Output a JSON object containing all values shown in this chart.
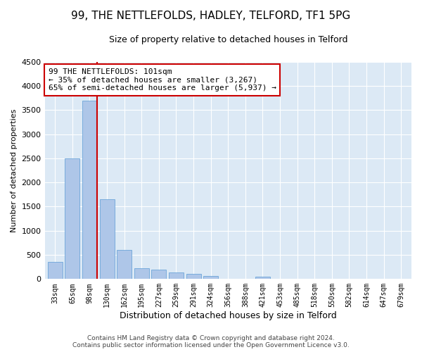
{
  "title": "99, THE NETTLEFOLDS, HADLEY, TELFORD, TF1 5PG",
  "subtitle": "Size of property relative to detached houses in Telford",
  "xlabel": "Distribution of detached houses by size in Telford",
  "ylabel": "Number of detached properties",
  "footer_line1": "Contains HM Land Registry data © Crown copyright and database right 2024.",
  "footer_line2": "Contains public sector information licensed under the Open Government Licence v3.0.",
  "categories": [
    "33sqm",
    "65sqm",
    "98sqm",
    "130sqm",
    "162sqm",
    "195sqm",
    "227sqm",
    "259sqm",
    "291sqm",
    "324sqm",
    "356sqm",
    "388sqm",
    "421sqm",
    "453sqm",
    "485sqm",
    "518sqm",
    "550sqm",
    "582sqm",
    "614sqm",
    "647sqm",
    "679sqm"
  ],
  "values": [
    350,
    2500,
    3700,
    1650,
    600,
    225,
    190,
    130,
    100,
    70,
    0,
    0,
    50,
    0,
    0,
    0,
    0,
    0,
    0,
    0,
    0
  ],
  "ylim": [
    0,
    4500
  ],
  "yticks": [
    0,
    500,
    1000,
    1500,
    2000,
    2500,
    3000,
    3500,
    4000,
    4500
  ],
  "bar_color": "#aec6e8",
  "bar_edge_color": "#5b9bd5",
  "annotation_line_color": "#cc0000",
  "annotation_box_color": "#cc0000",
  "annotation_line1": "99 THE NETTLEFOLDS: 101sqm",
  "annotation_line2": "← 35% of detached houses are smaller (3,267)",
  "annotation_line3": "65% of semi-detached houses are larger (5,937) →",
  "property_bar_index": 2,
  "background_color": "#ffffff",
  "plot_bg_color": "#dce9f5",
  "grid_color": "#ffffff",
  "title_fontsize": 11,
  "subtitle_fontsize": 9,
  "annotation_fontsize": 8,
  "ylabel_fontsize": 8,
  "xlabel_fontsize": 9,
  "tick_fontsize": 7,
  "footer_fontsize": 6.5
}
